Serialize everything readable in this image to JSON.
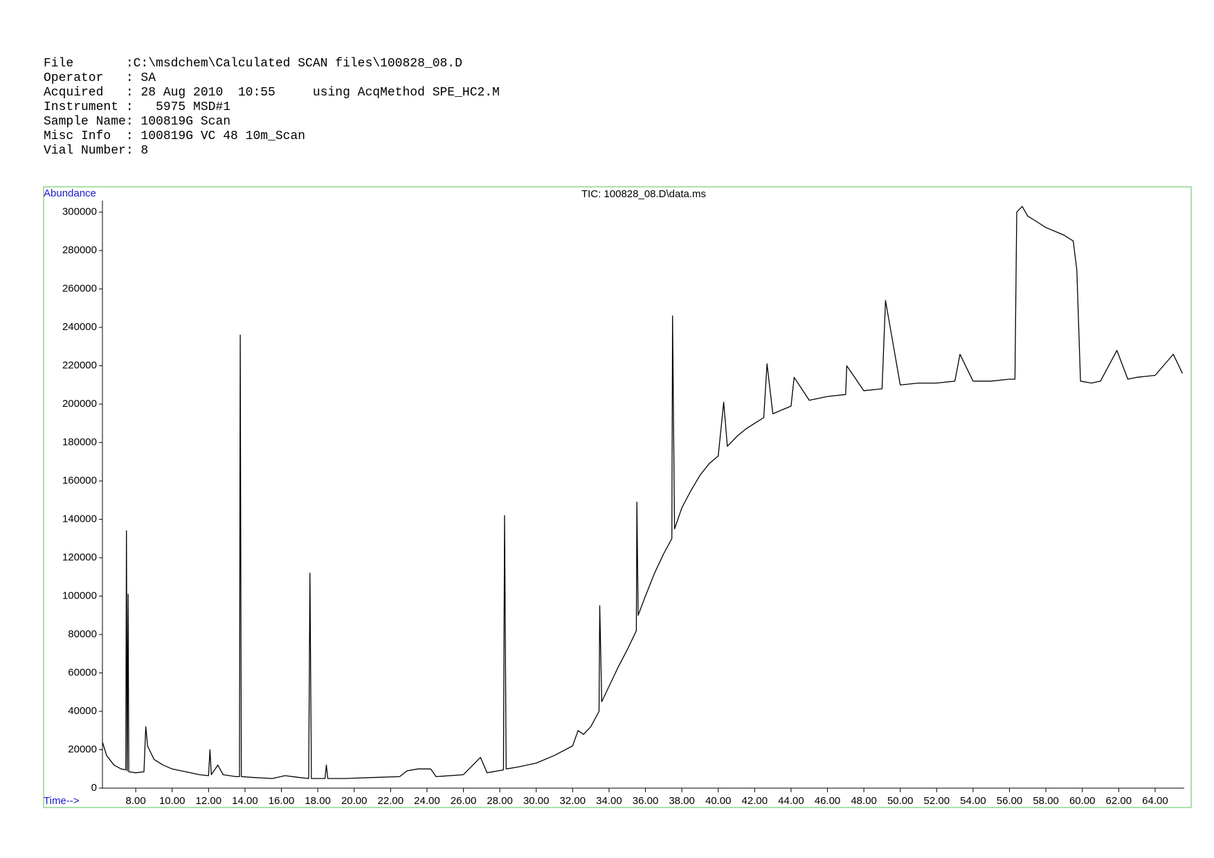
{
  "header": {
    "lines": [
      "File       :C:\\msdchem\\Calculated SCAN files\\100828_08.D",
      "Operator   : SA",
      "Acquired   : 28 Aug 2010  10:55     using AcqMethod SPE_HC2.M",
      "Instrument :   5975 MSD#1",
      "Sample Name: 100819G Scan",
      "Misc Info  : 100819G VC 48 10m_Scan",
      "Vial Number: 8"
    ]
  },
  "chart_data": {
    "type": "line",
    "title": "TIC: 100828_08.D\\data.ms",
    "y_label": "Abundance",
    "x_label": "Time-->",
    "color": "#000000",
    "xlim": [
      6.17,
      65.6
    ],
    "ylim": [
      0,
      306000
    ],
    "yticks": [
      0,
      20000,
      40000,
      60000,
      80000,
      100000,
      120000,
      140000,
      160000,
      180000,
      200000,
      220000,
      240000,
      260000,
      280000,
      300000
    ],
    "xticks": [
      {
        "value": 8,
        "label": "8.00"
      },
      {
        "value": 10,
        "label": "10.00"
      },
      {
        "value": 12,
        "label": "12.00"
      },
      {
        "value": 14,
        "label": "14.00"
      },
      {
        "value": 16,
        "label": "16.00"
      },
      {
        "value": 18,
        "label": "18.00"
      },
      {
        "value": 20,
        "label": "20.00"
      },
      {
        "value": 22,
        "label": "22.00"
      },
      {
        "value": 24,
        "label": "24.00"
      },
      {
        "value": 26,
        "label": "26.00"
      },
      {
        "value": 28,
        "label": "28.00"
      },
      {
        "value": 30,
        "label": "30.00"
      },
      {
        "value": 32,
        "label": "32.00"
      },
      {
        "value": 34,
        "label": "34.00"
      },
      {
        "value": 36,
        "label": "36.00"
      },
      {
        "value": 38,
        "label": "38.00"
      },
      {
        "value": 40,
        "label": "40.00"
      },
      {
        "value": 42,
        "label": "42.00"
      },
      {
        "value": 44,
        "label": "44.00"
      },
      {
        "value": 46,
        "label": "46.00"
      },
      {
        "value": 48,
        "label": "48.00"
      },
      {
        "value": 50,
        "label": "50.00"
      },
      {
        "value": 52,
        "label": "52.00"
      },
      {
        "value": 54,
        "label": "54.00"
      },
      {
        "value": 56,
        "label": "56.00"
      },
      {
        "value": 58,
        "label": "58.00"
      },
      {
        "value": 60,
        "label": "60.00"
      },
      {
        "value": 62,
        "label": "62.00"
      },
      {
        "value": 64,
        "label": "64.00"
      }
    ],
    "x": [
      6.17,
      6.4,
      6.8,
      7.2,
      7.45,
      7.49,
      7.53,
      7.58,
      7.62,
      8.0,
      8.45,
      8.55,
      8.65,
      9.0,
      9.5,
      10.0,
      10.5,
      11.0,
      11.5,
      12.0,
      12.08,
      12.15,
      12.51,
      12.8,
      13.5,
      13.7,
      13.74,
      13.8,
      14.5,
      15.5,
      16.2,
      17.0,
      17.5,
      17.57,
      17.65,
      18.4,
      18.47,
      18.55,
      19.5,
      21.0,
      22.5,
      22.9,
      23.5,
      24.2,
      24.5,
      26.0,
      26.94,
      27.3,
      28.2,
      28.26,
      28.35,
      29.0,
      30.0,
      31.0,
      32.0,
      32.3,
      32.6,
      33.0,
      33.45,
      33.49,
      33.6,
      34.0,
      34.5,
      35.0,
      35.5,
      35.53,
      35.6,
      36.0,
      36.5,
      37.0,
      37.45,
      37.49,
      37.6,
      38.0,
      38.5,
      39.0,
      39.5,
      40.0,
      40.3,
      40.5,
      41.0,
      41.5,
      42.0,
      42.5,
      42.68,
      43.0,
      43.5,
      44.0,
      44.17,
      45.0,
      46.0,
      47.0,
      47.06,
      48.0,
      49.0,
      49.19,
      50.0,
      51.0,
      52.0,
      53.0,
      53.28,
      54.0,
      55.0,
      56.0,
      56.3,
      56.4,
      56.7,
      57.0,
      57.5,
      58.0,
      58.5,
      59.0,
      59.5,
      59.7,
      59.9,
      60.5,
      61.0,
      61.9,
      62.5,
      63.0,
      64.0,
      65.0,
      65.5
    ],
    "values": [
      24000,
      17000,
      12000,
      10000,
      9500,
      134000,
      9000,
      101000,
      8500,
      8000,
      8500,
      32000,
      22000,
      15000,
      12000,
      10000,
      9000,
      8000,
      7000,
      6500,
      20000,
      7000,
      12000,
      7000,
      6000,
      6000,
      236000,
      6000,
      5500,
      5000,
      6500,
      5500,
      5000,
      112000,
      5000,
      5000,
      12000,
      5000,
      5000,
      5500,
      6000,
      9000,
      10000,
      10000,
      6000,
      7000,
      16000,
      8000,
      9500,
      142000,
      10000,
      11000,
      13000,
      17000,
      22000,
      30000,
      28000,
      32000,
      40000,
      95000,
      45000,
      53000,
      63000,
      72000,
      82000,
      149000,
      90000,
      100000,
      112000,
      122000,
      130000,
      246000,
      135000,
      146000,
      155000,
      163000,
      169000,
      173000,
      201000,
      178000,
      183000,
      187000,
      190000,
      193000,
      221000,
      195000,
      197000,
      199000,
      214000,
      202000,
      204000,
      205000,
      220000,
      207000,
      208000,
      254000,
      210000,
      211000,
      211000,
      212000,
      226000,
      212000,
      212000,
      213000,
      213000,
      300000,
      303000,
      298000,
      295000,
      292000,
      290000,
      288000,
      285000,
      270000,
      212000,
      211000,
      212000,
      228000,
      213000,
      214000,
      215000,
      226000,
      216000
    ]
  }
}
